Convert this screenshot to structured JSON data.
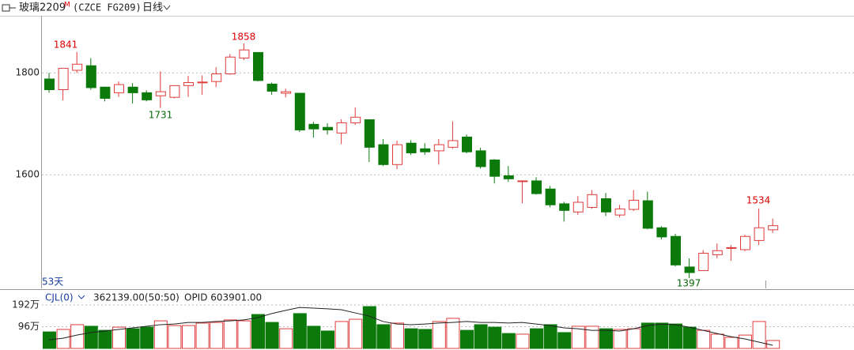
{
  "header": {
    "symbol": "玻璃2209",
    "flag": "M",
    "code": "(CZCE FG209)",
    "period": "日线"
  },
  "chart_data": [
    {
      "type": "candlestick",
      "days_label": "53天",
      "open": [
        1788,
        1767,
        1805,
        1814,
        1772,
        1761,
        1772,
        1761,
        1755,
        1752,
        1775,
        1781,
        1783,
        1798,
        1829,
        1840,
        1778,
        1760,
        1760,
        1699,
        1693,
        1682,
        1702,
        1708,
        1659,
        1620,
        1662,
        1651,
        1647,
        1654,
        1674,
        1647,
        1629,
        1598,
        1587,
        1588,
        1572,
        1543,
        1527,
        1536,
        1553,
        1521,
        1532,
        1549,
        1496,
        1479,
        1419,
        1412,
        1443,
        1456,
        1453,
        1471,
        1492
      ],
      "high": [
        1800,
        1809,
        1841,
        1829,
        1773,
        1783,
        1780,
        1766,
        1803,
        1775,
        1794,
        1795,
        1811,
        1837,
        1858,
        1840,
        1781,
        1769,
        1760,
        1704,
        1701,
        1709,
        1732,
        1708,
        1670,
        1667,
        1668,
        1662,
        1670,
        1705,
        1679,
        1653,
        1631,
        1617,
        1589,
        1595,
        1578,
        1547,
        1558,
        1570,
        1564,
        1541,
        1570,
        1567,
        1499,
        1484,
        1436,
        1452,
        1465,
        1462,
        1482,
        1534,
        1514
      ],
      "low": [
        1761,
        1746,
        1800,
        1767,
        1744,
        1753,
        1740,
        1744,
        1731,
        1750,
        1753,
        1757,
        1772,
        1796,
        1825,
        1783,
        1757,
        1752,
        1684,
        1673,
        1679,
        1660,
        1698,
        1625,
        1617,
        1611,
        1639,
        1639,
        1620,
        1651,
        1642,
        1612,
        1583,
        1586,
        1544,
        1561,
        1536,
        1508,
        1521,
        1533,
        1519,
        1516,
        1529,
        1493,
        1473,
        1420,
        1397,
        1411,
        1436,
        1431,
        1450,
        1462,
        1486
      ],
      "close": [
        1767,
        1809,
        1817,
        1771,
        1750,
        1777,
        1761,
        1747,
        1763,
        1775,
        1781,
        1782,
        1798,
        1831,
        1845,
        1785,
        1764,
        1763,
        1688,
        1690,
        1688,
        1702,
        1713,
        1654,
        1620,
        1659,
        1643,
        1645,
        1659,
        1667,
        1645,
        1616,
        1597,
        1592,
        1588,
        1563,
        1541,
        1530,
        1546,
        1561,
        1527,
        1533,
        1550,
        1495,
        1478,
        1423,
        1408,
        1446,
        1451,
        1457,
        1479,
        1496,
        1500
      ],
      "up_color": "#e03c3c",
      "down_color": "#0b7a0b",
      "ylim": [
        1377,
        1912
      ],
      "yticks": [
        1600,
        1800
      ],
      "grid": true
    },
    {
      "type": "bar",
      "indicator": "CJL(0)",
      "reading": "362139.00(50:50)",
      "opid": "OPID 603901.00",
      "values": [
        73,
        84,
        105,
        98,
        80,
        94,
        87,
        94,
        122,
        101,
        101,
        112,
        115,
        126,
        122,
        150,
        115,
        87,
        154,
        98,
        77,
        119,
        129,
        185,
        105,
        112,
        87,
        84,
        119,
        133,
        80,
        105,
        94,
        66,
        63,
        87,
        105,
        70,
        98,
        98,
        87,
        84,
        87,
        112,
        112,
        108,
        94,
        80,
        63,
        49,
        59,
        119,
        35
      ],
      "average": [
        38,
        45,
        59,
        70,
        77,
        84,
        91,
        98,
        105,
        108,
        115,
        115,
        119,
        122,
        126,
        136,
        154,
        168,
        181,
        178,
        175,
        171,
        157,
        143,
        119,
        108,
        105,
        108,
        112,
        115,
        119,
        115,
        115,
        112,
        115,
        108,
        101,
        91,
        87,
        80,
        80,
        77,
        87,
        101,
        108,
        105,
        94,
        80,
        66,
        52,
        42,
        28,
        14
      ],
      "average_color": "#222222",
      "ylim": [
        0,
        248
      ],
      "yticks": [
        {
          "value": 192,
          "label": "192万"
        },
        {
          "value": 96,
          "label": "96万"
        }
      ],
      "grid": true
    }
  ]
}
